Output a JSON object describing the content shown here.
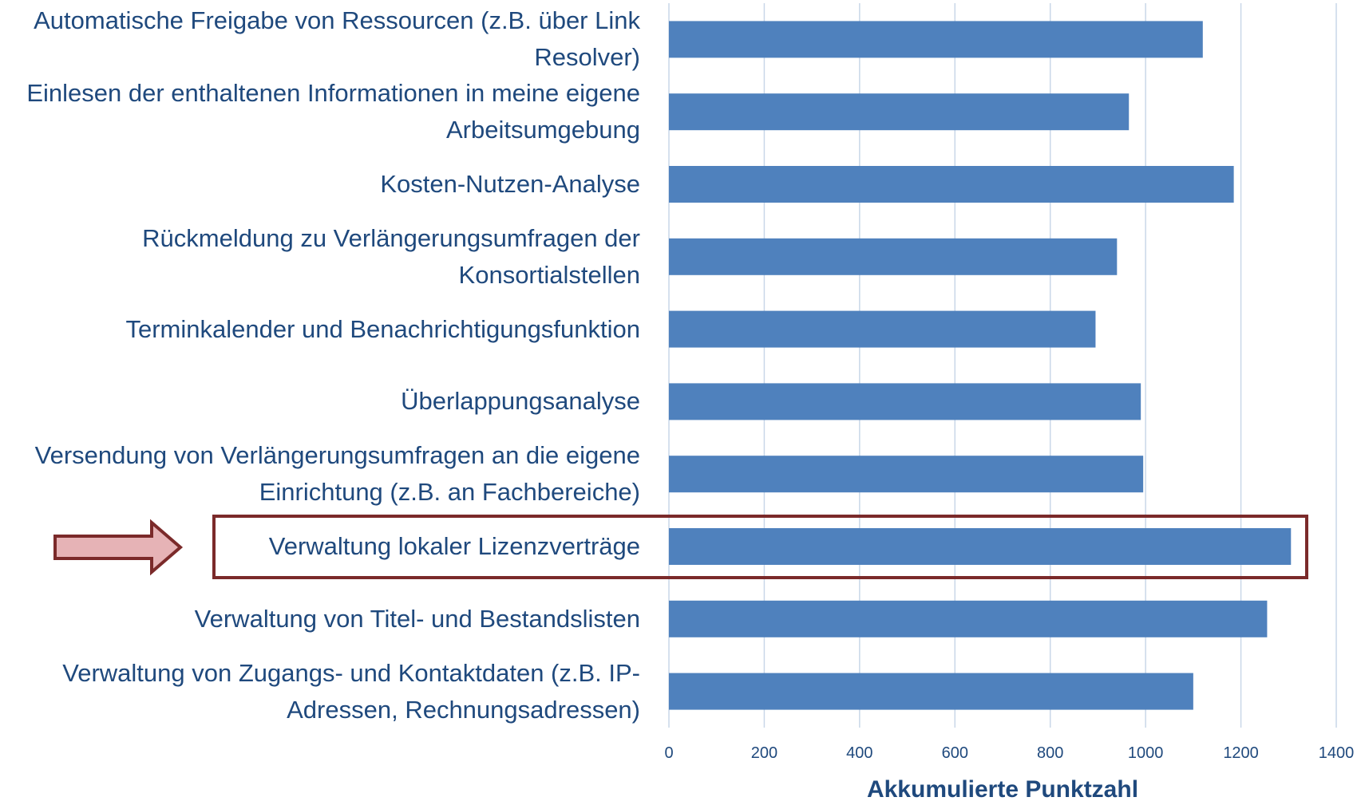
{
  "chart_data": {
    "type": "bar",
    "orientation": "horizontal",
    "categories": [
      "Automatische Freigabe von Ressourcen (z.B. über Link Resolver)",
      "Einlesen der enthaltenen Informationen in meine eigene Arbeitsumgebung",
      "Kosten-Nutzen-Analyse",
      "Rückmeldung zu Verlängerungsumfragen der Konsortialstellen",
      "Terminkalender und Benachrichtigungsfunktion",
      "Überlappungsanalyse",
      "Versendung von Verlängerungsumfragen an die eigene Einrichtung (z.B. an Fachbereiche)",
      "Verwaltung lokaler Lizenzverträge",
      "Verwaltung von Titel- und Bestandslisten",
      "Verwaltung von Zugangs- und Kontaktdaten (z.B. IP-Adressen, Rechnungsadressen)"
    ],
    "values": [
      1120,
      965,
      1185,
      940,
      895,
      990,
      995,
      1305,
      1255,
      1100
    ],
    "color": "#4f81bd",
    "xlabel": "Akkumulierte Punktzahl",
    "xlim": [
      0,
      1400
    ],
    "xticks": [
      0,
      200,
      400,
      600,
      800,
      1000,
      1200,
      1400
    ],
    "grid": true
  }
}
